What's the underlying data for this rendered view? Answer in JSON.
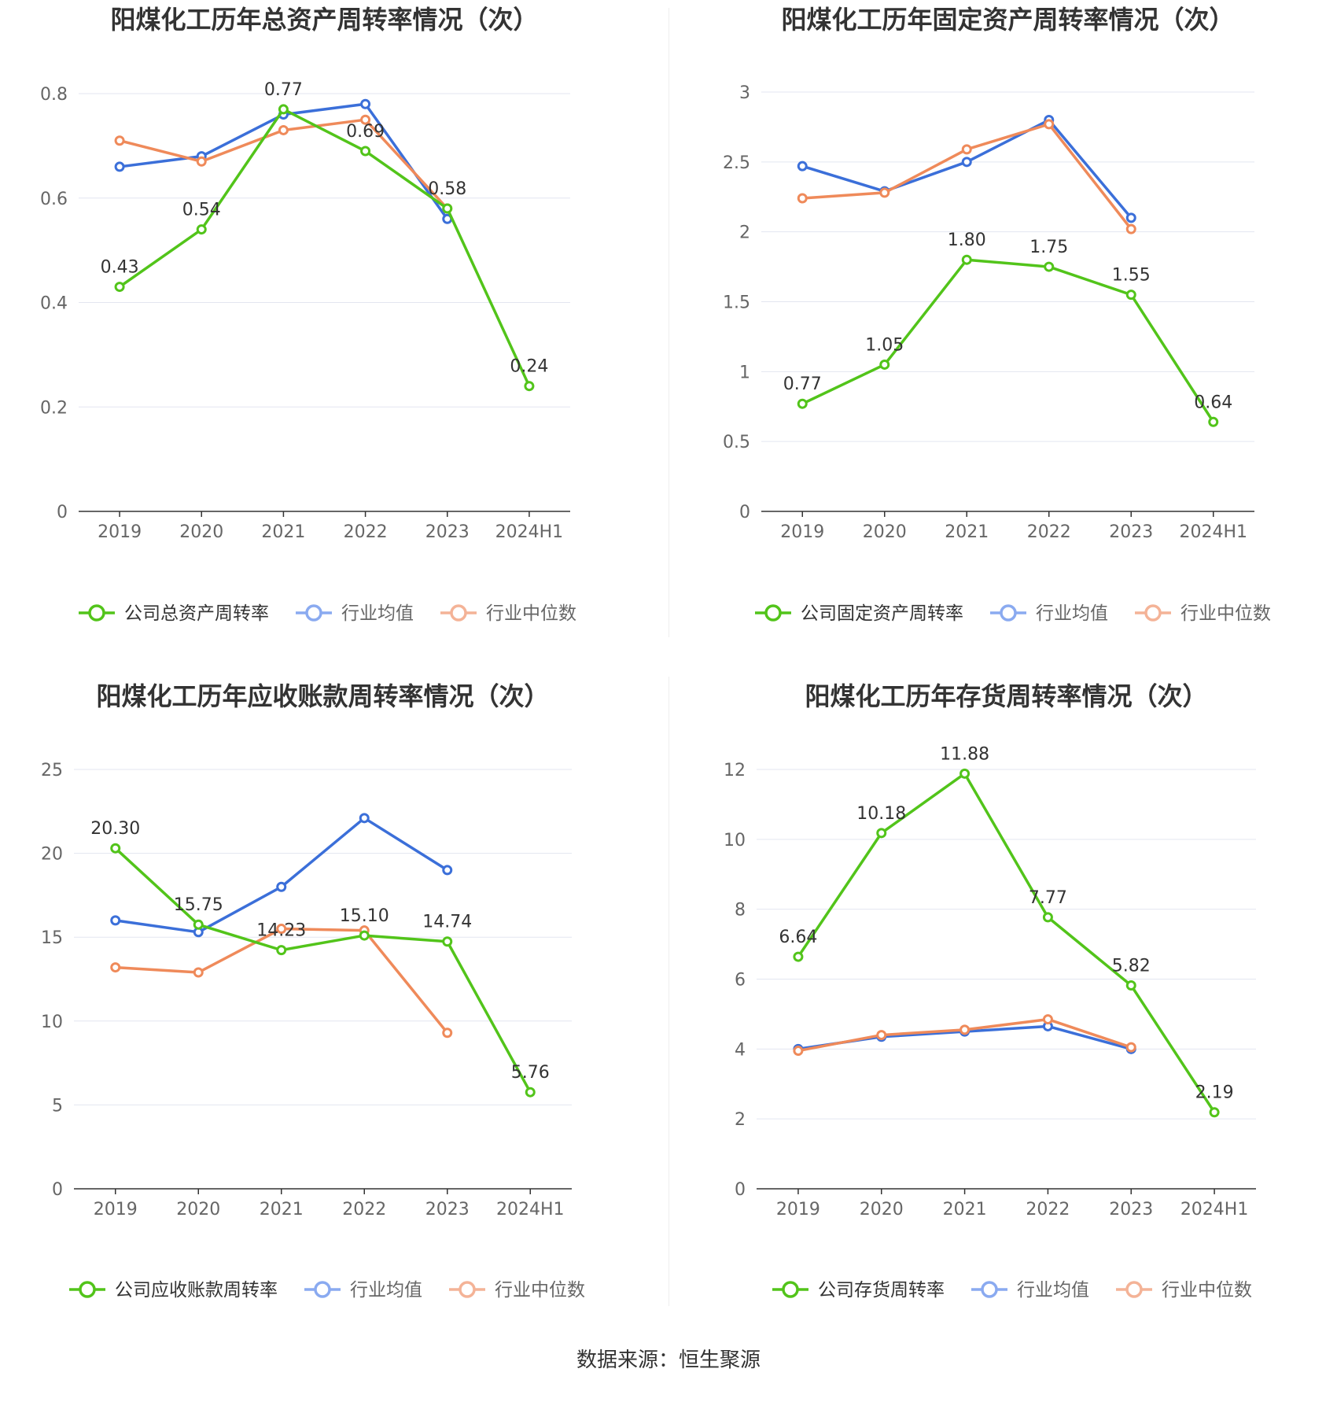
{
  "colors": {
    "company": "#52c41a",
    "industry_avg": "#3b6fd9",
    "industry_median": "#ef8a5a",
    "legend_avg": "#8aaaf0",
    "legend_median": "#f4b397",
    "grid": "#e3e6f0",
    "axis": "#333333",
    "tick_text": "#666666",
    "title_text": "#333333"
  },
  "footer": {
    "prefix": "数据来源：",
    "source": "恒生聚源"
  },
  "chart_data": [
    {
      "type": "line",
      "title": "阳煤化工历年总资产周转率情况（次）",
      "categories": [
        "2019",
        "2020",
        "2021",
        "2022",
        "2023",
        "2024H1"
      ],
      "ylim": [
        0,
        0.8
      ],
      "yticks": [
        0,
        0.2,
        0.4,
        0.6,
        0.8
      ],
      "ytick_labels": [
        "0",
        "0.2",
        "0.4",
        "0.6",
        "0.8"
      ],
      "grid": true,
      "legend_position": "bottom",
      "series": [
        {
          "name": "公司总资产周转率",
          "key": "company",
          "values": [
            0.43,
            0.54,
            0.77,
            0.69,
            0.58,
            0.24
          ],
          "labels": [
            "0.43",
            "0.54",
            "0.77",
            "0.69",
            "0.58",
            "0.24"
          ]
        },
        {
          "name": "行业均值",
          "key": "industry_avg",
          "values": [
            0.66,
            0.68,
            0.76,
            0.78,
            0.56,
            null
          ]
        },
        {
          "name": "行业中位数",
          "key": "industry_median",
          "values": [
            0.71,
            0.67,
            0.73,
            0.75,
            0.58,
            null
          ]
        }
      ]
    },
    {
      "type": "line",
      "title": "阳煤化工历年固定资产周转率情况（次）",
      "categories": [
        "2019",
        "2020",
        "2021",
        "2022",
        "2023",
        "2024H1"
      ],
      "ylim": [
        0,
        3
      ],
      "yticks": [
        0,
        0.5,
        1,
        1.5,
        2,
        2.5,
        3
      ],
      "ytick_labels": [
        "0",
        "0.5",
        "1",
        "1.5",
        "2",
        "2.5",
        "3"
      ],
      "grid": true,
      "legend_position": "bottom",
      "series": [
        {
          "name": "公司固定资产周转率",
          "key": "company",
          "values": [
            0.77,
            1.05,
            1.8,
            1.75,
            1.55,
            0.64
          ],
          "labels": [
            "0.77",
            "1.05",
            "1.80",
            "1.75",
            "1.55",
            "0.64"
          ]
        },
        {
          "name": "行业均值",
          "key": "industry_avg",
          "values": [
            2.47,
            2.29,
            2.5,
            2.8,
            2.1,
            null
          ]
        },
        {
          "name": "行业中位数",
          "key": "industry_median",
          "values": [
            2.24,
            2.28,
            2.59,
            2.77,
            2.02,
            null
          ]
        }
      ]
    },
    {
      "type": "line",
      "title": "阳煤化工历年应收账款周转率情况（次）",
      "categories": [
        "2019",
        "2020",
        "2021",
        "2022",
        "2023",
        "2024H1"
      ],
      "ylim": [
        0,
        25
      ],
      "yticks": [
        0,
        5,
        10,
        15,
        20,
        25
      ],
      "ytick_labels": [
        "0",
        "5",
        "10",
        "15",
        "20",
        "25"
      ],
      "grid": true,
      "legend_position": "bottom",
      "series": [
        {
          "name": "公司应收账款周转率",
          "key": "company",
          "values": [
            20.3,
            15.75,
            14.23,
            15.1,
            14.74,
            5.76
          ],
          "labels": [
            "20.30",
            "15.75",
            "14.23",
            "15.10",
            "14.74",
            "5.76"
          ]
        },
        {
          "name": "行业均值",
          "key": "industry_avg",
          "values": [
            16.0,
            15.3,
            18.0,
            22.1,
            19.0,
            null
          ]
        },
        {
          "name": "行业中位数",
          "key": "industry_median",
          "values": [
            13.2,
            12.9,
            15.5,
            15.4,
            9.3,
            null
          ]
        }
      ]
    },
    {
      "type": "line",
      "title": "阳煤化工历年存货周转率情况（次）",
      "categories": [
        "2019",
        "2020",
        "2021",
        "2022",
        "2023",
        "2024H1"
      ],
      "ylim": [
        0,
        12
      ],
      "yticks": [
        0,
        2,
        4,
        6,
        8,
        10,
        12
      ],
      "ytick_labels": [
        "0",
        "2",
        "4",
        "6",
        "8",
        "10",
        "12"
      ],
      "grid": true,
      "legend_position": "bottom",
      "series": [
        {
          "name": "公司存货周转率",
          "key": "company",
          "values": [
            6.64,
            10.18,
            11.88,
            7.77,
            5.82,
            2.19
          ],
          "labels": [
            "6.64",
            "10.18",
            "11.88",
            "7.77",
            "5.82",
            "2.19"
          ]
        },
        {
          "name": "行业均值",
          "key": "industry_avg",
          "values": [
            4.0,
            4.35,
            4.5,
            4.65,
            4.0,
            null
          ]
        },
        {
          "name": "行业中位数",
          "key": "industry_median",
          "values": [
            3.95,
            4.4,
            4.55,
            4.85,
            4.05,
            null
          ]
        }
      ]
    }
  ]
}
